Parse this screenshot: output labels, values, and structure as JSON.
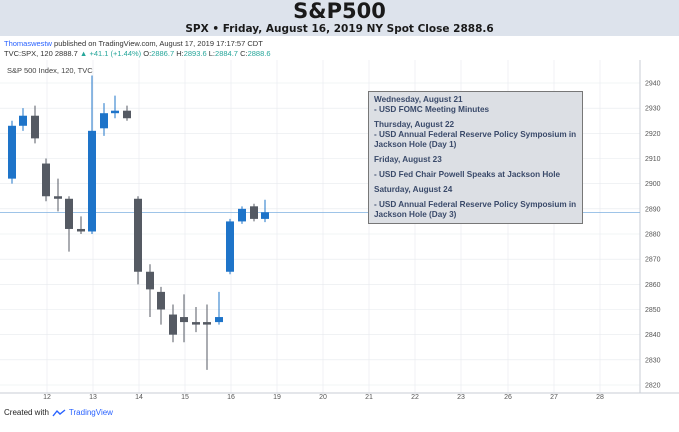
{
  "header": {
    "title": "S&P500",
    "subtitle": "SPX • Friday, August 16, 2019 NY Spot Close 2888.6"
  },
  "publish": {
    "author": "Thomaswestw",
    "rest": " published on TradingView.com, August 17, 2019 17:17:57 CDT"
  },
  "ohlc": {
    "symbol": "TVC:SPX, 120",
    "last": "2888.7",
    "arrow": "▲",
    "change": "+41.1 (+1.44%)",
    "o_label": "O:",
    "o_value": "2886.7",
    "h_label": "H:",
    "h_value": "2893.6",
    "l_label": "L:",
    "l_value": "2884.7",
    "c_label": "C:",
    "c_value": "2888.6"
  },
  "footer": {
    "created_with": "Created with",
    "brand": "TradingView"
  },
  "notes": {
    "wed_title": "Wednesday, August 21",
    "wed_item": "- USD FOMC Meeting Minutes",
    "thu_title": "Thursday, August 22",
    "thu_item": "- USD Annual Federal Reserve Policy Symposium in Jackson Hole (Day 1)",
    "fri_title": "Friday, August 23",
    "fri_item": "- USD Fed Chair Powell Speaks at Jackson Hole",
    "sat_title": "Saturday, August 24",
    "sat_item": "- USD Annual Federal Reserve Policy Symposium in Jackson Hole (Day 3)"
  },
  "colors": {
    "up": "#1e74c9",
    "down": "#555a63",
    "price_line": "#7fb0e0",
    "grid": "#e6e9ee"
  },
  "chart_data": {
    "type": "candlestick",
    "title": "S&P 500 Index, 120, TVC",
    "ylim": [
      2820,
      2945
    ],
    "yticks": [
      2820,
      2830,
      2840,
      2850,
      2860,
      2870,
      2880,
      2890,
      2900,
      2910,
      2920,
      2930,
      2940
    ],
    "xticks": [
      "12",
      "13",
      "14",
      "15",
      "16",
      "19",
      "20",
      "21",
      "22",
      "23",
      "26",
      "27",
      "28"
    ],
    "last_price": 2888.6,
    "candles": [
      {
        "o": 2902,
        "h": 2925,
        "l": 2900,
        "c": 2923
      },
      {
        "o": 2923,
        "h": 2930,
        "l": 2921,
        "c": 2927
      },
      {
        "o": 2927,
        "h": 2931,
        "l": 2916,
        "c": 2918
      },
      {
        "o": 2908,
        "h": 2910,
        "l": 2893,
        "c": 2895
      },
      {
        "o": 2895,
        "h": 2902,
        "l": 2889,
        "c": 2894
      },
      {
        "o": 2894,
        "h": 2895,
        "l": 2873,
        "c": 2882
      },
      {
        "o": 2882,
        "h": 2887,
        "l": 2880,
        "c": 2881
      },
      {
        "o": 2881,
        "h": 2943,
        "l": 2880,
        "c": 2921
      },
      {
        "o": 2922,
        "h": 2932,
        "l": 2919,
        "c": 2928
      },
      {
        "o": 2928,
        "h": 2935,
        "l": 2926,
        "c": 2929
      },
      {
        "o": 2929,
        "h": 2931,
        "l": 2925,
        "c": 2926
      },
      {
        "o": 2894,
        "h": 2895,
        "l": 2860,
        "c": 2865
      },
      {
        "o": 2865,
        "h": 2868,
        "l": 2847,
        "c": 2858
      },
      {
        "o": 2857,
        "h": 2859,
        "l": 2844,
        "c": 2850
      },
      {
        "o": 2848,
        "h": 2852,
        "l": 2837,
        "c": 2840
      },
      {
        "o": 2847,
        "h": 2856,
        "l": 2837,
        "c": 2845
      },
      {
        "o": 2845,
        "h": 2851,
        "l": 2841,
        "c": 2844
      },
      {
        "o": 2845,
        "h": 2852,
        "l": 2826,
        "c": 2844
      },
      {
        "o": 2845,
        "h": 2857,
        "l": 2844,
        "c": 2847
      },
      {
        "o": 2865,
        "h": 2886,
        "l": 2864,
        "c": 2885
      },
      {
        "o": 2885,
        "h": 2891,
        "l": 2884,
        "c": 2890
      },
      {
        "o": 2891,
        "h": 2892,
        "l": 2885,
        "c": 2886
      },
      {
        "o": 2886,
        "h": 2893.6,
        "l": 2884.7,
        "c": 2888.6
      }
    ]
  }
}
